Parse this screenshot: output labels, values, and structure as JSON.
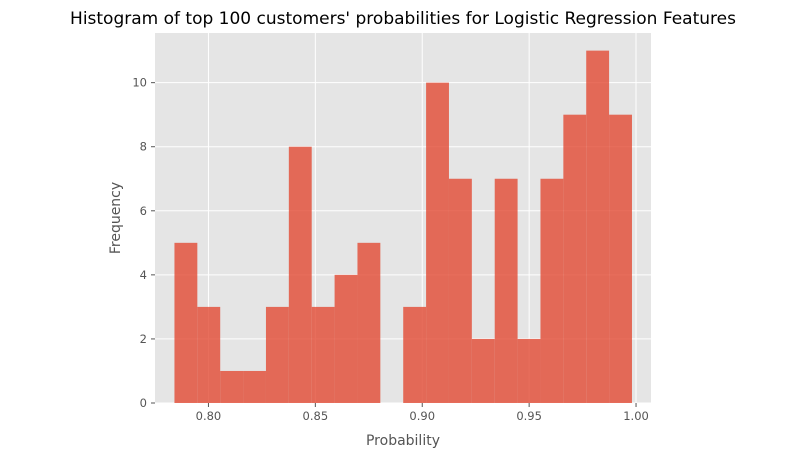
{
  "chart_data": {
    "type": "bar",
    "title": "Histogram of top 100 customers' probabilities for Logistic Regression Features",
    "xlabel": "Probability",
    "ylabel": "Frequency",
    "xlim": [
      0.775,
      1.007
    ],
    "ylim": [
      0,
      11.55
    ],
    "grid": true,
    "style": "ggplot",
    "bar_color": "#E24A33",
    "bar_opacity": 0.8,
    "background_color": "#E5E5E5",
    "grid_color": "#FFFFFF",
    "bin_edges": [
      0.7841,
      0.7948,
      0.8055,
      0.8162,
      0.8269,
      0.8376,
      0.8483,
      0.859,
      0.8697,
      0.8804,
      0.8911,
      0.9018,
      0.9125,
      0.9232,
      0.9339,
      0.9446,
      0.9553,
      0.966,
      0.9767,
      0.9874,
      0.9981
    ],
    "values": [
      5,
      3,
      1,
      1,
      3,
      8,
      3,
      4,
      5,
      0,
      3,
      10,
      7,
      2,
      7,
      2,
      7,
      9,
      11,
      9
    ],
    "x_ticks": [
      0.8,
      0.85,
      0.9,
      0.95,
      1.0
    ],
    "x_tick_labels": [
      "0.80",
      "0.85",
      "0.90",
      "0.95",
      "1.00"
    ],
    "y_ticks": [
      0,
      2,
      4,
      6,
      8,
      10
    ],
    "y_tick_labels": [
      "0",
      "2",
      "4",
      "6",
      "8",
      "10"
    ]
  }
}
